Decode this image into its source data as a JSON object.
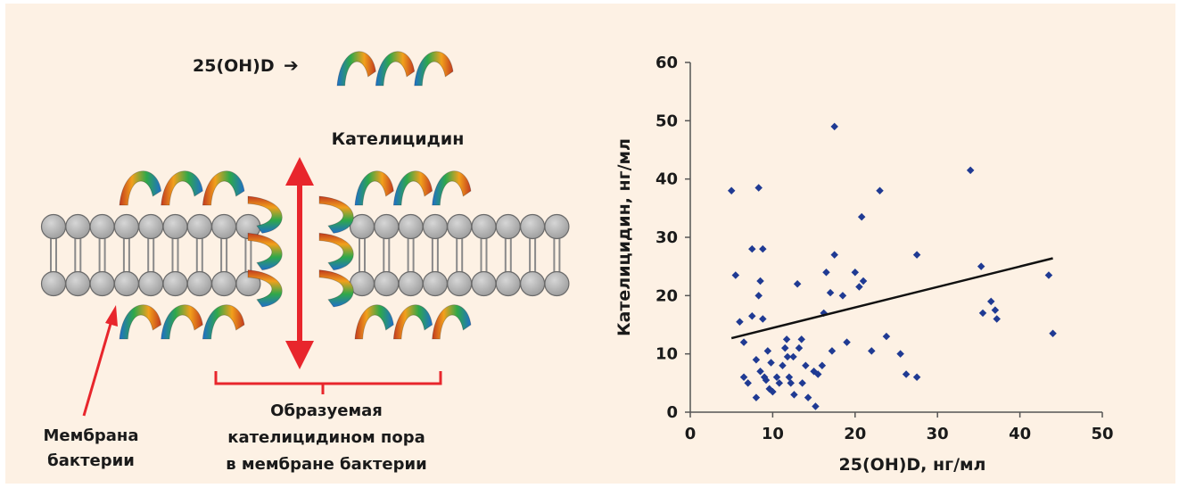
{
  "diagram": {
    "input_label": "25(OH)D",
    "arrow_symbol": "➔",
    "peptide_label": "Кателицидин",
    "membrane_label_line1": "Мембрана",
    "membrane_label_line2": "бактерии",
    "pore_label_line1": "Образуемая",
    "pore_label_line2": "кателицидином пора",
    "pore_label_line3": "в мембране бактерии",
    "colors": {
      "background": "#fdf1e4",
      "lipid_head": "#b4b4b4",
      "red_arrow": "#e8262c",
      "helix_gradient": [
        "#1f6fc8",
        "#2fa84a",
        "#f2a01c",
        "#c23a1e"
      ]
    }
  },
  "chart_data": {
    "type": "scatter",
    "xlabel": "25(OH)D, нг/мл",
    "ylabel": "Кателицидин, нг/мл",
    "xlim": [
      0,
      50
    ],
    "ylim": [
      0,
      60
    ],
    "xticks": [
      0,
      10,
      20,
      30,
      40,
      50
    ],
    "yticks": [
      0,
      10,
      20,
      30,
      40,
      50,
      60
    ],
    "grid": false,
    "marker_color": "#1f3a93",
    "trendline": {
      "x": [
        5,
        44
      ],
      "y": [
        12.7,
        26.4
      ],
      "color": "#111111"
    },
    "points": [
      [
        5,
        38
      ],
      [
        5.5,
        23.5
      ],
      [
        6,
        15.5
      ],
      [
        6.5,
        6
      ],
      [
        6.5,
        12
      ],
      [
        7,
        5
      ],
      [
        7.5,
        28
      ],
      [
        7.5,
        16.5
      ],
      [
        8,
        2.5
      ],
      [
        8,
        9
      ],
      [
        8.3,
        38.5
      ],
      [
        8.5,
        22.5
      ],
      [
        8.3,
        20
      ],
      [
        8.5,
        7
      ],
      [
        8.8,
        28
      ],
      [
        8.8,
        16
      ],
      [
        9,
        6
      ],
      [
        9.2,
        5.5
      ],
      [
        9.4,
        10.5
      ],
      [
        9.6,
        4
      ],
      [
        9.8,
        8.5
      ],
      [
        10,
        3.5
      ],
      [
        10.5,
        6
      ],
      [
        10.8,
        5
      ],
      [
        11.2,
        8
      ],
      [
        11.5,
        11
      ],
      [
        11.7,
        12.5
      ],
      [
        11.8,
        9.5
      ],
      [
        12,
        6
      ],
      [
        12.2,
        5
      ],
      [
        12.5,
        9.5
      ],
      [
        12.6,
        3
      ],
      [
        13,
        22
      ],
      [
        13.2,
        11
      ],
      [
        13.5,
        12.5
      ],
      [
        13.6,
        5
      ],
      [
        14,
        8
      ],
      [
        14.3,
        2.5
      ],
      [
        15,
        7
      ],
      [
        15.2,
        1
      ],
      [
        15.5,
        6.5
      ],
      [
        16,
        8
      ],
      [
        16.2,
        17
      ],
      [
        16.5,
        24
      ],
      [
        17,
        20.5
      ],
      [
        17.2,
        10.5
      ],
      [
        17.5,
        27
      ],
      [
        17.5,
        49
      ],
      [
        18.5,
        20
      ],
      [
        19,
        12
      ],
      [
        20,
        24
      ],
      [
        20.5,
        21.5
      ],
      [
        20.8,
        33.5
      ],
      [
        21,
        22.5
      ],
      [
        22,
        10.5
      ],
      [
        23,
        38
      ],
      [
        23.8,
        13
      ],
      [
        25.5,
        10
      ],
      [
        26.2,
        6.5
      ],
      [
        27.5,
        27
      ],
      [
        27.5,
        6
      ],
      [
        34,
        41.5
      ],
      [
        35.3,
        25
      ],
      [
        35.5,
        17
      ],
      [
        36.5,
        19
      ],
      [
        37,
        17.5
      ],
      [
        37.2,
        16
      ],
      [
        43.5,
        23.5
      ],
      [
        44,
        13.5
      ]
    ]
  }
}
